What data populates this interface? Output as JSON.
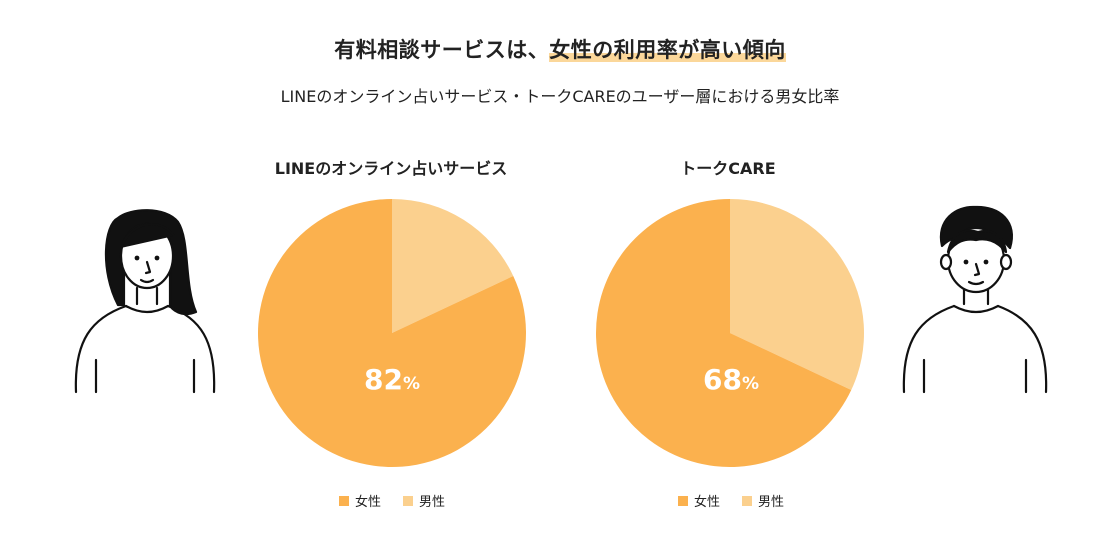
{
  "header": {
    "title_before": "有料相談サービスは、",
    "title_highlight": "女性の利用率が高い傾向",
    "subtitle": "LINEのオンライン占いサービス・トークCAREのユーザー層における男女比率"
  },
  "colors": {
    "female": "#fbb14e",
    "male": "#fbd08e",
    "highlight": "#fbd79a"
  },
  "chart_data": [
    {
      "type": "pie",
      "title": "LINEのオンライン占いサービス",
      "labels": [
        "女性",
        "男性"
      ],
      "values": [
        82,
        18
      ],
      "display_value": "82",
      "unit": "%"
    },
    {
      "type": "pie",
      "title": "トークCARE",
      "labels": [
        "女性",
        "男性"
      ],
      "values": [
        68,
        32
      ],
      "display_value": "68",
      "unit": "%"
    }
  ],
  "legend": {
    "female_label": "女性",
    "male_label": "男性"
  }
}
